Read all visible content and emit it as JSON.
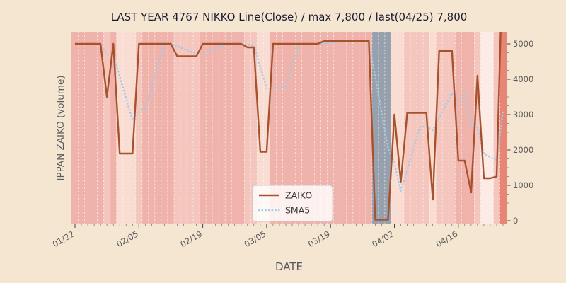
{
  "chart_data": {
    "type": "line",
    "title": "LAST YEAR 4767 NIKKO Line(Close) / max 7,800 / last(04/25) 7,800",
    "xlabel": "DATE",
    "ylabel": "IPPAN ZAIKO (volume)",
    "x_tick_labels": [
      "01/22",
      "02/05",
      "02/19",
      "03/05",
      "03/19",
      "04/02",
      "04/16"
    ],
    "x_tick_indices": [
      0,
      10,
      20,
      30,
      40,
      50,
      60
    ],
    "y_ticks": [
      0,
      1000,
      2000,
      3000,
      4000,
      5000
    ],
    "y_tick_labels": [
      "0",
      "1000",
      "2000",
      "3000",
      "4000",
      "5000"
    ],
    "ylim": [
      -100,
      5340
    ],
    "grid": "dashed white vertical separators per business day",
    "legend_position": "lower center-left inside plot",
    "series": [
      {
        "name": "ZAIKO",
        "style": "solid",
        "color": "#a8512d",
        "values": [
          5000,
          5000,
          5000,
          5000,
          5000,
          3500,
          5000,
          1900,
          1900,
          1900,
          5000,
          5000,
          5000,
          5000,
          5000,
          5000,
          4650,
          4650,
          4650,
          4650,
          5000,
          5000,
          5000,
          5000,
          5000,
          5000,
          5000,
          4900,
          4900,
          1950,
          1950,
          5000,
          5000,
          5000,
          5000,
          5000,
          5000,
          5000,
          5000,
          5080,
          5080,
          5080,
          5080,
          5080,
          5080,
          5080,
          5080,
          30,
          30,
          30,
          3000,
          1100,
          3050,
          3050,
          3050,
          3050,
          600,
          4800,
          4800,
          4800,
          1700,
          1700,
          800,
          4100,
          1200,
          1200,
          1250,
          7800
        ]
      },
      {
        "name": "SMA5",
        "style": "dotted",
        "color": "#a6c9e6",
        "derived": "5-period moving average of ZAIKO"
      }
    ],
    "background_bands": {
      "palette": {
        "base": "#f0b3ab",
        "mid": "#f4c6bd",
        "light": "#f9ddd3",
        "pale": "#fcece5",
        "gray": "#97a1ae",
        "dark": "#e78677"
      },
      "per_day": [
        "base",
        "base",
        "base",
        "base",
        "base",
        "mid",
        "base",
        "light",
        "light",
        "light",
        "mid",
        "base",
        "base",
        "base",
        "base",
        "base",
        "mid",
        "mid",
        "mid",
        "mid",
        "base",
        "base",
        "base",
        "base",
        "base",
        "base",
        "base",
        "mid",
        "mid",
        "light",
        "light",
        "base",
        "base",
        "base",
        "base",
        "base",
        "base",
        "base",
        "base",
        "base",
        "base",
        "base",
        "base",
        "base",
        "base",
        "base",
        "base",
        "gray",
        "gray",
        "gray",
        "light",
        "light",
        "mid",
        "mid",
        "mid",
        "mid",
        "light",
        "mid",
        "mid",
        "mid",
        "base",
        "base",
        "base",
        "mid",
        "pale",
        "pale",
        "mid",
        "dark"
      ]
    }
  },
  "colors": {
    "figure_bg": "#f5e6d2",
    "plot_bg": "#eeeae1",
    "text_title": "#1a1a30",
    "text_axis": "#5a5a5a",
    "tick_mark": "#555555",
    "day_separator": "rgba(255,255,255,0.7)",
    "legend_bg": "rgba(255,255,255,0.82)",
    "legend_border": "#c9c9c9"
  }
}
